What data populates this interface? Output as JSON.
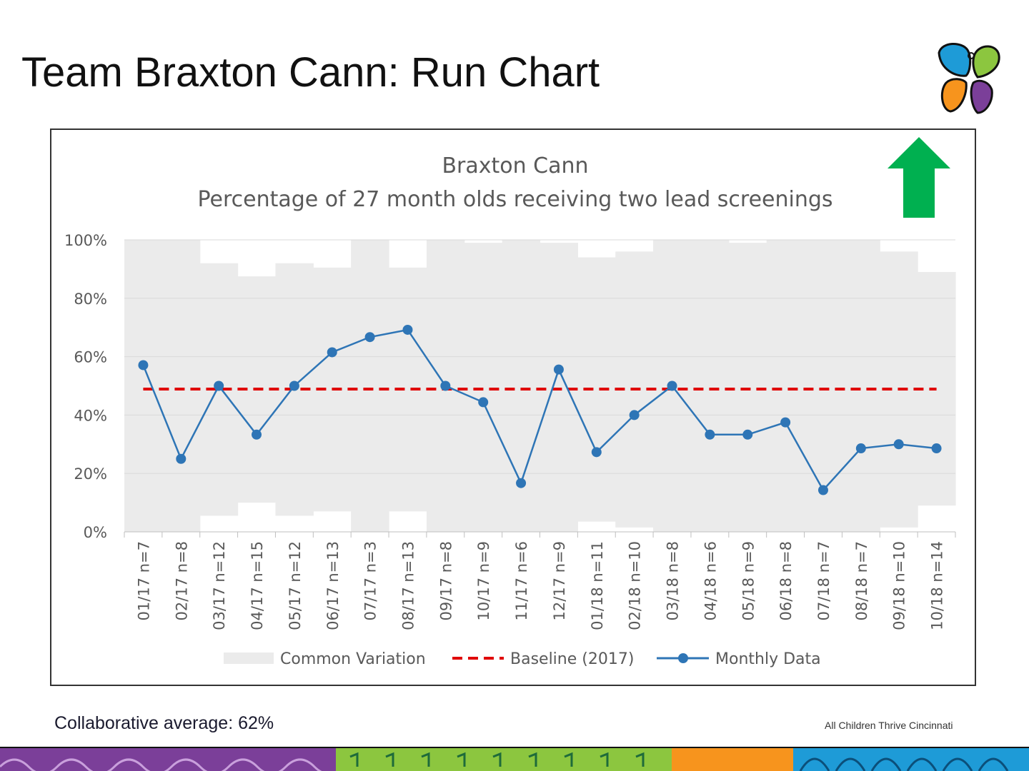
{
  "slide": {
    "title": "Team Braxton Cann: Run Chart",
    "footer_left": "Collaborative average: 62%",
    "footer_right": "All Children Thrive Cincinnati"
  },
  "colors": {
    "series": "#2e75b6",
    "baseline": "#e00000",
    "band": "#ebebeb",
    "arrow": "#00b050",
    "axis_text": "#595959"
  },
  "icons": {
    "logo": "butterfly-logo-icon",
    "arrow": "up-arrow-icon"
  },
  "chart_data": {
    "type": "line",
    "title": "Braxton Cann",
    "subtitle": "Percentage of 27 month olds receiving two lead screenings",
    "ylim": [
      0,
      100
    ],
    "y_ticks": [
      "0%",
      "20%",
      "40%",
      "60%",
      "80%",
      "100%"
    ],
    "categories": [
      "01/17 n=7",
      "02/17 n=8",
      "03/17 n=12",
      "04/17 n=15",
      "05/17 n=12",
      "06/17 n=13",
      "07/17 n=3",
      "08/17 n=13",
      "09/17 n=8",
      "10/17 n=9",
      "11/17 n=6",
      "12/17 n=9",
      "01/18 n=11",
      "02/18 n=10",
      "03/18 n=8",
      "04/18 n=6",
      "05/18 n=9",
      "06/18 n=8",
      "07/18 n=7",
      "08/18 n=7",
      "09/18 n=10",
      "10/18 n=14"
    ],
    "series": [
      {
        "name": "Monthly Data",
        "values": [
          57.1,
          25.0,
          50.0,
          33.3,
          50.0,
          61.5,
          66.7,
          69.2,
          50.0,
          44.4,
          16.7,
          55.6,
          27.3,
          40.0,
          50.0,
          33.3,
          33.3,
          37.5,
          14.3,
          28.6,
          30.0,
          28.6
        ]
      },
      {
        "name": "Baseline (2017)",
        "values": [
          48.9,
          48.9,
          48.9,
          48.9,
          48.9,
          48.9,
          48.9,
          48.9,
          48.9,
          48.9,
          48.9,
          48.9,
          48.9,
          48.9,
          48.9,
          48.9,
          48.9,
          48.9,
          48.9,
          48.9,
          48.9,
          48.9
        ]
      },
      {
        "name": "Common Variation",
        "lower": [
          0,
          0,
          5.5,
          10,
          5.5,
          7,
          0,
          7,
          0,
          0,
          0,
          0,
          3.5,
          1.5,
          0,
          0,
          0,
          0,
          0,
          0,
          1.5,
          9
        ],
        "upper": [
          100,
          100,
          92,
          87.5,
          92,
          90.5,
          100,
          90.5,
          100,
          99,
          100,
          99,
          94,
          96,
          100,
          100,
          99,
          100,
          100,
          100,
          96,
          89
        ]
      }
    ],
    "legend": [
      "Common Variation",
      "Baseline (2017)",
      "Monthly Data"
    ],
    "legend_position": "bottom",
    "grid": true
  }
}
